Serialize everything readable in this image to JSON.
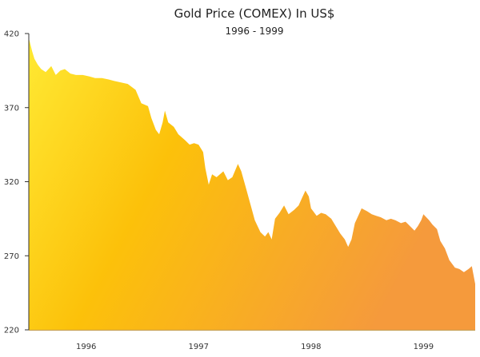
{
  "chart_data": {
    "type": "area",
    "title": "Gold Price (COMEX) In US$",
    "subtitle": "1996 - 1999",
    "xlabel": "",
    "ylabel": "",
    "ylim": [
      220,
      420
    ],
    "xlim": [
      1995.99,
      1999.96
    ],
    "y_ticks": [
      420,
      370,
      320,
      270,
      220
    ],
    "x_tick_labels": [
      {
        "label": "1996",
        "x": 1996.5
      },
      {
        "label": "1997",
        "x": 1997.5
      },
      {
        "label": "1998",
        "x": 1998.5
      },
      {
        "label": "1999",
        "x": 1999.5
      }
    ],
    "grid": false,
    "legend": "none",
    "colors": {
      "start": "#ffe933",
      "mid": "#fcc10a",
      "end": "#f59a3c",
      "axis": "#333333",
      "baseline": "#c8a35a"
    },
    "series": [
      {
        "name": "Gold Price",
        "x": [
          1995.99,
          1996.02,
          1996.04,
          1996.07,
          1996.1,
          1996.14,
          1996.19,
          1996.23,
          1996.27,
          1996.31,
          1996.36,
          1996.41,
          1996.47,
          1996.53,
          1996.58,
          1996.64,
          1996.7,
          1996.75,
          1996.81,
          1996.87,
          1996.94,
          1996.99,
          1997.05,
          1997.08,
          1997.12,
          1997.15,
          1997.18,
          1997.2,
          1997.23,
          1997.28,
          1997.32,
          1997.38,
          1997.42,
          1997.46,
          1997.5,
          1997.54,
          1997.56,
          1997.59,
          1997.62,
          1997.66,
          1997.72,
          1997.76,
          1997.8,
          1997.85,
          1997.88,
          1997.92,
          1997.96,
          1998.0,
          1998.05,
          1998.09,
          1998.12,
          1998.15,
          1998.18,
          1998.22,
          1998.26,
          1998.3,
          1998.35,
          1998.39,
          1998.42,
          1998.45,
          1998.48,
          1998.5,
          1998.55,
          1998.59,
          1998.63,
          1998.68,
          1998.72,
          1998.76,
          1998.8,
          1998.83,
          1998.86,
          1998.89,
          1998.92,
          1998.95,
          1999.0,
          1999.04,
          1999.08,
          1999.12,
          1999.17,
          1999.21,
          1999.25,
          1999.3,
          1999.34,
          1999.38,
          1999.42,
          1999.45,
          1999.48,
          1999.5,
          1999.55,
          1999.58,
          1999.62,
          1999.65,
          1999.69,
          1999.73,
          1999.78,
          1999.82,
          1999.86,
          1999.9,
          1999.93,
          1999.94,
          1999.96
        ],
        "values": [
          417,
          408,
          403,
          399,
          396,
          394,
          398,
          392,
          395,
          396,
          393,
          392,
          392,
          391,
          390,
          390,
          389,
          388,
          387,
          386,
          382,
          373,
          371,
          363,
          355,
          352,
          360,
          368,
          360,
          357,
          352,
          348,
          345,
          346,
          345,
          340,
          329,
          318,
          325,
          323,
          327,
          321,
          323,
          332,
          327,
          316,
          305,
          294,
          286,
          283,
          286,
          281,
          295,
          299,
          304,
          298,
          301,
          304,
          309,
          314,
          310,
          302,
          297,
          299,
          298,
          295,
          290,
          285,
          281,
          276,
          281,
          292,
          297,
          302,
          300,
          298,
          297,
          296,
          294,
          295,
          294,
          292,
          293,
          290,
          287,
          290,
          294,
          298,
          294,
          291,
          288,
          280,
          275,
          267,
          262,
          261,
          259,
          261,
          263,
          259,
          251
        ]
      }
    ]
  }
}
